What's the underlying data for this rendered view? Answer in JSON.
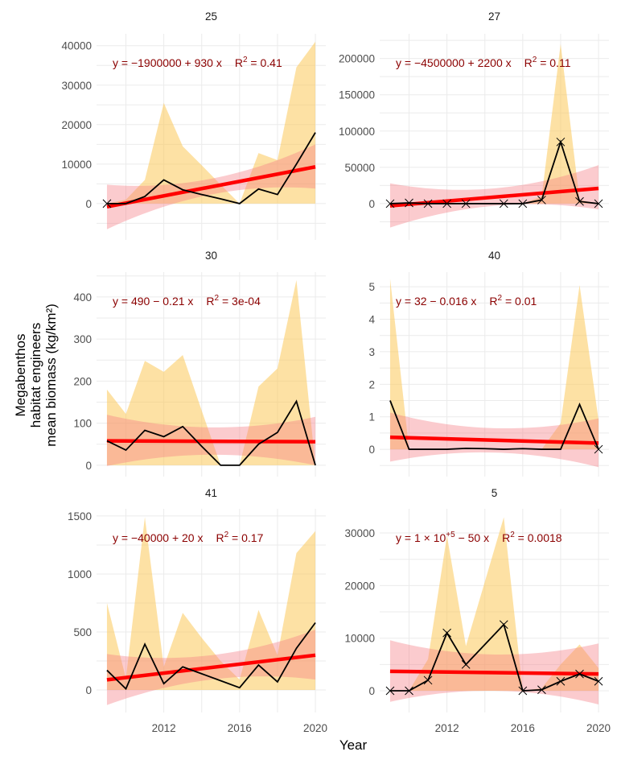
{
  "chart_data": [
    {
      "type": "line",
      "title": "25",
      "ylim": [
        -9200,
        43000
      ],
      "yticks": [
        0,
        10000,
        20000,
        30000,
        40000
      ],
      "x": [
        2009,
        2010,
        2011,
        2012,
        2013,
        2014,
        2015,
        2016,
        2017,
        2018,
        2019,
        2020
      ],
      "mean": [
        0,
        0,
        1800,
        6000,
        3500,
        2300,
        1200,
        0,
        3700,
        2300,
        10000,
        18000
      ],
      "upper": [
        0,
        1000,
        6000,
        25500,
        14500,
        9700,
        4800,
        0,
        12800,
        11000,
        34500,
        41000
      ],
      "lower": [
        0,
        0,
        0,
        0,
        0,
        0,
        0,
        0,
        0,
        0,
        0,
        0
      ],
      "markers": [
        2009
      ],
      "fit": {
        "x": [
          2009,
          2014.5,
          2020
        ],
        "y": [
          -800,
          4250,
          9300
        ],
        "lo": [
          -6500,
          2300,
          3800
        ],
        "hi": [
          4800,
          6300,
          15000
        ]
      },
      "equation": {
        "pre": "y = −1900000 + 930 x",
        "sup": "",
        "post": "",
        "r2": "0.41"
      }
    },
    {
      "type": "line",
      "title": "27",
      "ylim": [
        -50000,
        234000
      ],
      "yticks": [
        0,
        50000,
        100000,
        150000,
        200000
      ],
      "x": [
        2009,
        2010,
        2011,
        2012,
        2013,
        2015,
        2016,
        2017,
        2018,
        2019,
        2020
      ],
      "mean": [
        0,
        1000,
        0,
        0,
        0,
        0,
        0,
        5000,
        85000,
        3000,
        0
      ],
      "upper": [
        0,
        1000,
        0,
        0,
        0,
        0,
        0,
        10000,
        220000,
        5000,
        0
      ],
      "lower": [
        0,
        0,
        0,
        0,
        0,
        0,
        0,
        0,
        0,
        0,
        0
      ],
      "markers": [
        2009,
        2010,
        2011,
        2012,
        2013,
        2015,
        2016,
        2017,
        2018,
        2019,
        2020
      ],
      "fit": {
        "x": [
          2009,
          2014.5,
          2020
        ],
        "y": [
          -3000,
          9000,
          21000
        ],
        "lo": [
          -33000,
          -3000,
          -8000
        ],
        "hi": [
          28000,
          21000,
          53000
        ]
      },
      "equation": {
        "pre": "y = −4500000 + 2200 x",
        "sup": "",
        "post": "",
        "r2": "0.11"
      }
    },
    {
      "type": "line",
      "title": "30",
      "ylim": [
        -27,
        459
      ],
      "yticks": [
        0,
        100,
        200,
        300,
        400
      ],
      "x": [
        2009,
        2010,
        2011,
        2012,
        2013,
        2014,
        2015,
        2016,
        2017,
        2018,
        2019,
        2020
      ],
      "mean": [
        58,
        36,
        83,
        68,
        92,
        45,
        0,
        0,
        50,
        78,
        152,
        0
      ],
      "upper": [
        180,
        122,
        248,
        222,
        262,
        130,
        0,
        0,
        187,
        230,
        440,
        0
      ],
      "lower": [
        0,
        0,
        0,
        0,
        0,
        0,
        0,
        0,
        0,
        0,
        0,
        0
      ],
      "markers": [],
      "fit": {
        "x": [
          2009,
          2014.5,
          2020
        ],
        "y": [
          58,
          57,
          56
        ],
        "lo": [
          -2,
          25,
          0
        ],
        "hi": [
          120,
          90,
          115
        ]
      },
      "equation": {
        "pre": "y = 490 − 0.21 x",
        "sup": "",
        "post": "",
        "r2": "3e-04"
      }
    },
    {
      "type": "line",
      "title": "40",
      "ylim": [
        -0.84,
        5.45
      ],
      "yticks": [
        0,
        1,
        2,
        3,
        4,
        5
      ],
      "x": [
        2009,
        2010,
        2011,
        2012,
        2013,
        2014,
        2015,
        2016,
        2017,
        2018,
        2019,
        2020
      ],
      "mean": [
        1.5,
        0,
        0,
        0,
        0.03,
        0.02,
        0,
        0.02,
        0,
        0,
        1.38,
        0
      ],
      "upper": [
        5.25,
        0,
        0,
        0,
        0,
        0,
        0,
        0,
        0,
        0.8,
        5.05,
        0.9
      ],
      "lower": [
        0,
        0,
        0,
        0,
        0,
        0,
        0,
        0,
        0,
        0,
        0,
        0
      ],
      "markers": [
        2020
      ],
      "fit": {
        "x": [
          2009,
          2014.5,
          2020
        ],
        "y": [
          0.37,
          0.28,
          0.19
        ],
        "lo": [
          -0.38,
          -0.1,
          -0.55
        ],
        "hi": [
          1.13,
          0.65,
          0.95
        ]
      },
      "equation": {
        "pre": "y = 32 − 0.016 x",
        "sup": "",
        "post": "",
        "r2": "0.01"
      }
    },
    {
      "type": "line",
      "title": "41",
      "ylim": [
        -194,
        1562
      ],
      "yticks": [
        0,
        500,
        1000,
        1500
      ],
      "x": [
        2009,
        2010,
        2011,
        2012,
        2013,
        2014,
        2015,
        2016,
        2017,
        2018,
        2019,
        2020
      ],
      "mean": [
        170,
        10,
        395,
        55,
        200,
        140,
        80,
        20,
        215,
        70,
        360,
        580
      ],
      "upper": [
        750,
        100,
        1490,
        200,
        665,
        450,
        250,
        90,
        690,
        300,
        1180,
        1370
      ],
      "lower": [
        0,
        0,
        0,
        0,
        0,
        0,
        0,
        0,
        0,
        0,
        0,
        0
      ],
      "markers": [],
      "fit": {
        "x": [
          2009,
          2014.5,
          2020
        ],
        "y": [
          88,
          194,
          300
        ],
        "lo": [
          -130,
          90,
          90
        ],
        "hi": [
          310,
          300,
          520
        ]
      },
      "equation": {
        "pre": "y = −40000 + 20 x",
        "sup": "",
        "post": "",
        "r2": "0.17"
      }
    },
    {
      "type": "line",
      "title": "5",
      "ylim": [
        -4130,
        34600
      ],
      "yticks": [
        0,
        10000,
        20000,
        30000
      ],
      "x": [
        2009,
        2010,
        2011,
        2012,
        2013,
        2015,
        2016,
        2017,
        2018,
        2019,
        2020
      ],
      "mean": [
        0,
        0,
        2000,
        11000,
        5000,
        12600,
        0,
        200,
        1800,
        3200,
        1800
      ],
      "upper": [
        0,
        0,
        6000,
        29500,
        8500,
        33000,
        0,
        500,
        5000,
        8800,
        4300
      ],
      "lower": [
        0,
        0,
        0,
        0,
        0,
        0,
        0,
        0,
        0,
        0,
        0
      ],
      "markers": [
        2009,
        2010,
        2011,
        2012,
        2013,
        2015,
        2016,
        2017,
        2018,
        2019,
        2020
      ],
      "fit": {
        "x": [
          2009,
          2014.5,
          2020
        ],
        "y": [
          3700,
          3450,
          3200
        ],
        "lo": [
          -2100,
          0,
          -2600
        ],
        "hi": [
          9600,
          6900,
          9000
        ]
      },
      "equation": {
        "pre": "y = 1 × 10",
        "sup": "+5",
        "post": " − 50 x",
        "r2": "0.0018"
      }
    }
  ],
  "xlim": [
    2008.45,
    2020.55
  ],
  "xticks": [
    2012,
    2016,
    2020
  ],
  "xlabel": "Year",
  "ylabel": [
    "Megabenthos",
    "habitat engineers",
    "mean biomass (kg/km²)"
  ],
  "r2_label": "R",
  "r2_sup": "2",
  "colors": {
    "ribbon": "#fcc85a",
    "ci": "#f47c85",
    "fit": "#ff0000",
    "mean": "#000000",
    "equation": "#8b0000",
    "grid": "#ebebeb"
  }
}
